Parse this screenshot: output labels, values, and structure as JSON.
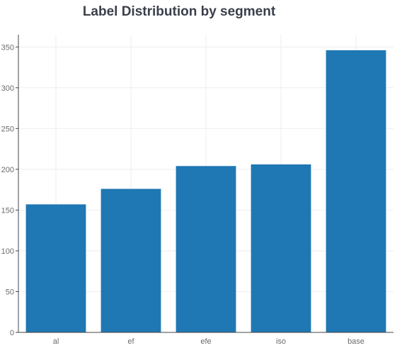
{
  "chart_data": {
    "type": "bar",
    "title": "Label Distribution by segment",
    "xlabel": "",
    "ylabel": "",
    "categories": [
      "al",
      "ef",
      "efe",
      "iso",
      "base"
    ],
    "values": [
      157,
      176,
      204,
      206,
      346
    ],
    "ylim": [
      0,
      365
    ],
    "yticks": [
      0,
      50,
      100,
      150,
      200,
      250,
      300,
      350
    ],
    "grid": true,
    "legend": "none",
    "bar_color": "#1f77b4",
    "grid_color": "#eeeeee",
    "axis_color": "#444444"
  }
}
